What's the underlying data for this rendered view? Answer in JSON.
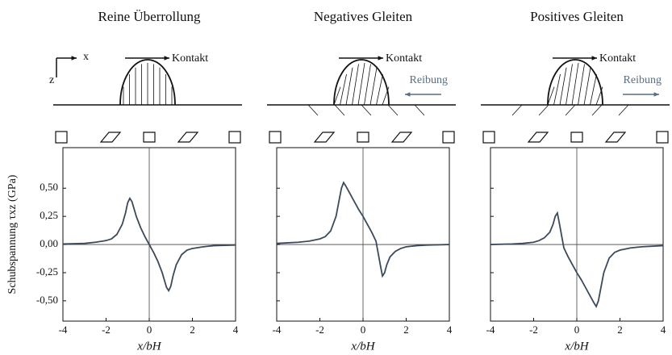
{
  "chart_data": [
    {
      "type": "line",
      "title": "Reine Überrollung",
      "annotations": [
        "x",
        "z",
        "Kontakt"
      ],
      "ylabel": "Schubspannung τxz (GPa)",
      "xlabel": "x/bH",
      "x": [
        -4,
        -3,
        -2.5,
        -2,
        -1.75,
        -1.5,
        -1.25,
        -1.1,
        -1,
        -0.9,
        -0.8,
        -0.6,
        -0.4,
        -0.2,
        0,
        0.2,
        0.4,
        0.6,
        0.8,
        0.9,
        1,
        1.1,
        1.25,
        1.5,
        1.75,
        2,
        2.5,
        3,
        4
      ],
      "series": [
        {
          "name": "Reine Überrollung",
          "color": "#3b4a5a",
          "values": [
            0.005,
            0.01,
            0.02,
            0.035,
            0.05,
            0.09,
            0.18,
            0.28,
            0.37,
            0.41,
            0.38,
            0.25,
            0.15,
            0.07,
            0,
            -0.07,
            -0.15,
            -0.25,
            -0.38,
            -0.41,
            -0.37,
            -0.28,
            -0.18,
            -0.09,
            -0.05,
            -0.035,
            -0.02,
            -0.01,
            -0.005
          ]
        }
      ],
      "xlim": [
        -4,
        4
      ],
      "ylim": [
        -0.68,
        0.86
      ],
      "xticks": [
        -4,
        -2,
        0,
        2,
        4
      ],
      "yticks": [
        {
          "value": 0.5,
          "label": "0,50"
        },
        {
          "value": 0.25,
          "label": "0,25"
        },
        {
          "value": 0,
          "label": "0,00"
        },
        {
          "value": -0.25,
          "label": "-0,25"
        },
        {
          "value": -0.5,
          "label": "-0,50"
        }
      ]
    },
    {
      "type": "line",
      "title": "Negatives Gleiten",
      "annotations": [
        "Kontakt",
        "Reibung"
      ],
      "xlabel": "x/bH",
      "x": [
        -4,
        -3,
        -2.5,
        -2,
        -1.75,
        -1.5,
        -1.25,
        -1.1,
        -1,
        -0.9,
        -0.8,
        -0.6,
        -0.4,
        -0.2,
        0,
        0.2,
        0.4,
        0.6,
        0.8,
        0.9,
        1,
        1.1,
        1.25,
        1.5,
        1.75,
        2,
        2.5,
        3,
        4
      ],
      "series": [
        {
          "name": "Negatives Gleiten",
          "color": "#3b4a5a",
          "values": [
            0.01,
            0.02,
            0.03,
            0.05,
            0.07,
            0.12,
            0.25,
            0.4,
            0.5,
            0.55,
            0.52,
            0.45,
            0.38,
            0.31,
            0.25,
            0.18,
            0.11,
            0.03,
            -0.18,
            -0.28,
            -0.25,
            -0.18,
            -0.11,
            -0.06,
            -0.035,
            -0.02,
            -0.01,
            -0.005,
            0
          ]
        }
      ],
      "xlim": [
        -4,
        4
      ],
      "ylim": [
        -0.68,
        0.86
      ],
      "xticks": [
        -4,
        -2,
        0,
        2,
        4
      ]
    },
    {
      "type": "line",
      "title": "Positives Gleiten",
      "annotations": [
        "Kontakt",
        "Reibung"
      ],
      "xlabel": "x/bH",
      "x": [
        -4,
        -3,
        -2.5,
        -2,
        -1.75,
        -1.5,
        -1.25,
        -1.1,
        -1,
        -0.9,
        -0.8,
        -0.6,
        -0.4,
        -0.2,
        0,
        0.2,
        0.4,
        0.6,
        0.8,
        0.9,
        1,
        1.1,
        1.25,
        1.5,
        1.75,
        2,
        2.5,
        3,
        4
      ],
      "series": [
        {
          "name": "Positives Gleiten",
          "color": "#3b4a5a",
          "values": [
            0,
            0.005,
            0.01,
            0.02,
            0.035,
            0.06,
            0.11,
            0.18,
            0.25,
            0.28,
            0.18,
            -0.03,
            -0.11,
            -0.18,
            -0.25,
            -0.31,
            -0.38,
            -0.45,
            -0.52,
            -0.55,
            -0.5,
            -0.4,
            -0.25,
            -0.12,
            -0.07,
            -0.05,
            -0.03,
            -0.02,
            -0.01
          ]
        }
      ],
      "xlim": [
        -4,
        4
      ],
      "ylim": [
        -0.68,
        0.86
      ],
      "xticks": [
        -4,
        -2,
        0,
        2,
        4
      ]
    }
  ]
}
